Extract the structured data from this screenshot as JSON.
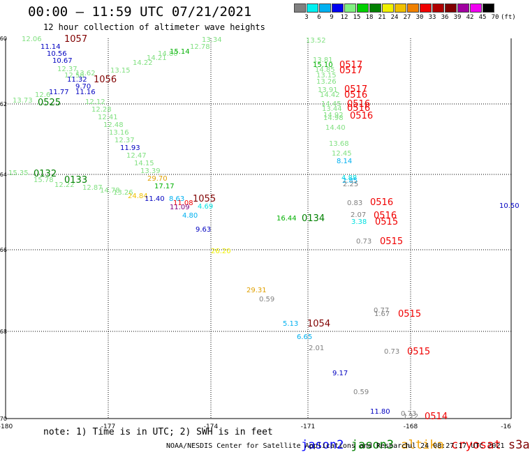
{
  "header": {
    "title": "00:00 — 11:59 UTC 07/21/2021",
    "subtitle": "12 hour collection of altimeter wave heights"
  },
  "colorbar": {
    "unit": "(ft)",
    "ticks": [
      "3",
      "6",
      "9",
      "12",
      "15",
      "18",
      "21",
      "24",
      "27",
      "30",
      "33",
      "36",
      "39",
      "42",
      "45",
      "70"
    ],
    "colors": [
      "#808080",
      "#00f0f0",
      "#00b0f0",
      "#0000f0",
      "#80f080",
      "#00d000",
      "#008000",
      "#f0f000",
      "#f0c000",
      "#f08000",
      "#f00000",
      "#b00000",
      "#800000",
      "#a000a0",
      "#f000f0",
      "#000000"
    ]
  },
  "axes": {
    "y_ticks": [
      "-60",
      "-62",
      "-64",
      "-66",
      "-68",
      "-70"
    ],
    "x_ticks": [
      "-180",
      "-177",
      "-174",
      "-171",
      "-168",
      "-16"
    ]
  },
  "observations": [
    {
      "t": "12.06",
      "c": "#80e080",
      "x": 31,
      "y": 59
    },
    {
      "t": "1057",
      "c": "#800000",
      "x": 92,
      "y": 60,
      "big": true
    },
    {
      "t": "11.14",
      "c": "#0000c0",
      "x": 58,
      "y": 70
    },
    {
      "t": "10.56",
      "c": "#0000c0",
      "x": 67,
      "y": 80
    },
    {
      "t": "10.67",
      "c": "#0000c0",
      "x": 75,
      "y": 90
    },
    {
      "t": "12.37",
      "c": "#80e080",
      "x": 82,
      "y": 102
    },
    {
      "t": "12.58",
      "c": "#80e080",
      "x": 92,
      "y": 111
    },
    {
      "t": "11.32",
      "c": "#0000c0",
      "x": 96,
      "y": 117
    },
    {
      "t": "1056",
      "c": "#800000",
      "x": 134,
      "y": 118,
      "big": true
    },
    {
      "t": "9.70",
      "c": "#0000c0",
      "x": 108,
      "y": 127
    },
    {
      "t": "11.77",
      "c": "#0000c0",
      "x": 70,
      "y": 135
    },
    {
      "t": "11.16",
      "c": "#0000c0",
      "x": 108,
      "y": 135
    },
    {
      "t": "12.6",
      "c": "#80e080",
      "x": 50,
      "y": 139
    },
    {
      "t": "13.73",
      "c": "#80e080",
      "x": 18,
      "y": 147
    },
    {
      "t": "0525",
      "c": "#008000",
      "x": 54,
      "y": 151,
      "big": true
    },
    {
      "t": "12.12",
      "c": "#80e080",
      "x": 122,
      "y": 149
    },
    {
      "t": "12.28",
      "c": "#80e080",
      "x": 131,
      "y": 160
    },
    {
      "t": "12.41",
      "c": "#80e080",
      "x": 140,
      "y": 171
    },
    {
      "t": "12.48",
      "c": "#80e080",
      "x": 148,
      "y": 182
    },
    {
      "t": "13.16",
      "c": "#80e080",
      "x": 156,
      "y": 193
    },
    {
      "t": "12.37",
      "c": "#80e080",
      "x": 164,
      "y": 204
    },
    {
      "t": "11.93",
      "c": "#0000c0",
      "x": 172,
      "y": 215
    },
    {
      "t": "12.47",
      "c": "#80e080",
      "x": 181,
      "y": 226
    },
    {
      "t": "14.15",
      "c": "#80e080",
      "x": 192,
      "y": 237
    },
    {
      "t": "13.39",
      "c": "#80e080",
      "x": 201,
      "y": 248
    },
    {
      "t": "15.35",
      "c": "#80e080",
      "x": 12,
      "y": 251
    },
    {
      "t": "0132",
      "c": "#008000",
      "x": 48,
      "y": 253,
      "big": true
    },
    {
      "t": "15.78",
      "c": "#80e080",
      "x": 48,
      "y": 261
    },
    {
      "t": "12.22",
      "c": "#80e080",
      "x": 78,
      "y": 268
    },
    {
      "t": "0133",
      "c": "#008000",
      "x": 92,
      "y": 262,
      "big": true
    },
    {
      "t": "12.87",
      "c": "#80e080",
      "x": 118,
      "y": 272
    },
    {
      "t": "14.78",
      "c": "#80e080",
      "x": 143,
      "y": 276
    },
    {
      "t": "13.26",
      "c": "#80e080",
      "x": 162,
      "y": 279
    },
    {
      "t": "29.70",
      "c": "#e0a000",
      "x": 211,
      "y": 259
    },
    {
      "t": "17.17",
      "c": "#00b000",
      "x": 221,
      "y": 270
    },
    {
      "t": "24.84",
      "c": "#f0c000",
      "x": 183,
      "y": 284
    },
    {
      "t": "11.40",
      "c": "#0000c0",
      "x": 207,
      "y": 288
    },
    {
      "t": "8.63",
      "c": "#00b0f0",
      "x": 242,
      "y": 288
    },
    {
      "t": "1055",
      "c": "#800000",
      "x": 276,
      "y": 289,
      "big": true
    },
    {
      "t": "11.08",
      "c": "#f00000",
      "x": 248,
      "y": 294
    },
    {
      "t": "11.09",
      "c": "#800080",
      "x": 243,
      "y": 300
    },
    {
      "t": "4.69",
      "c": "#00e0e0",
      "x": 283,
      "y": 299
    },
    {
      "t": "4.80",
      "c": "#00b0f0",
      "x": 261,
      "y": 312
    },
    {
      "t": "9.63",
      "c": "#0000c0",
      "x": 280,
      "y": 332
    },
    {
      "t": "13.62",
      "c": "#80e080",
      "x": 108,
      "y": 108
    },
    {
      "t": "13.15",
      "c": "#80e080",
      "x": 158,
      "y": 104
    },
    {
      "t": "14.22",
      "c": "#80e080",
      "x": 190,
      "y": 93
    },
    {
      "t": "14.21",
      "c": "#80e080",
      "x": 210,
      "y": 86
    },
    {
      "t": "14.80",
      "c": "#80e080",
      "x": 226,
      "y": 80
    },
    {
      "t": "15.14",
      "c": "#00b000",
      "x": 243,
      "y": 77
    },
    {
      "t": "12.78",
      "c": "#80e080",
      "x": 272,
      "y": 70
    },
    {
      "t": "13.34",
      "c": "#80e080",
      "x": 289,
      "y": 60
    },
    {
      "t": "26.20",
      "c": "#f0f000",
      "x": 302,
      "y": 363
    },
    {
      "t": "29.31",
      "c": "#e0a000",
      "x": 353,
      "y": 419
    },
    {
      "t": "0.59",
      "c": "#808080",
      "x": 371,
      "y": 432
    },
    {
      "t": "5.13",
      "c": "#00b0f0",
      "x": 405,
      "y": 467
    },
    {
      "t": "1054",
      "c": "#800000",
      "x": 440,
      "y": 468,
      "big": true
    },
    {
      "t": "6.65",
      "c": "#00b0f0",
      "x": 425,
      "y": 486
    },
    {
      "t": "2.01",
      "c": "#808080",
      "x": 442,
      "y": 502
    },
    {
      "t": "16.44",
      "c": "#00b000",
      "x": 396,
      "y": 316
    },
    {
      "t": "0134",
      "c": "#008000",
      "x": 432,
      "y": 317,
      "big": true
    },
    {
      "t": "13.52",
      "c": "#80e080",
      "x": 438,
      "y": 61
    },
    {
      "t": "13.81",
      "c": "#80e080",
      "x": 448,
      "y": 89
    },
    {
      "t": "15.10",
      "c": "#00b000",
      "x": 448,
      "y": 96
    },
    {
      "t": "14.85",
      "c": "#80e080",
      "x": 451,
      "y": 103
    },
    {
      "t": "13.15",
      "c": "#80e080",
      "x": 453,
      "y": 111
    },
    {
      "t": "13.26",
      "c": "#80e080",
      "x": 453,
      "y": 120
    },
    {
      "t": "0517",
      "c": "#f00000",
      "x": 486,
      "y": 97,
      "big": true
    },
    {
      "t": "0517",
      "c": "#f00000",
      "x": 486,
      "y": 105,
      "big": true
    },
    {
      "t": "13.91",
      "c": "#80e080",
      "x": 455,
      "y": 132
    },
    {
      "t": "14.42",
      "c": "#80e080",
      "x": 458,
      "y": 139
    },
    {
      "t": "0517",
      "c": "#f00000",
      "x": 493,
      "y": 132,
      "big": true
    },
    {
      "t": "0516",
      "c": "#f00000",
      "x": 493,
      "y": 140,
      "big": true
    },
    {
      "t": "14.45",
      "c": "#80e080",
      "x": 460,
      "y": 152
    },
    {
      "t": "13.44",
      "c": "#80e080",
      "x": 461,
      "y": 159
    },
    {
      "t": "0516",
      "c": "#f00000",
      "x": 497,
      "y": 153,
      "big": true
    },
    {
      "t": "0516",
      "c": "#f00000",
      "x": 497,
      "y": 159,
      "big": true
    },
    {
      "t": "14.92",
      "c": "#80e080",
      "x": 463,
      "y": 168
    },
    {
      "t": "14.98",
      "c": "#80e080",
      "x": 463,
      "y": 172
    },
    {
      "t": "0516",
      "c": "#f00000",
      "x": 501,
      "y": 170,
      "big": true
    },
    {
      "t": "14.40",
      "c": "#80e080",
      "x": 466,
      "y": 186
    },
    {
      "t": "13.68",
      "c": "#80e080",
      "x": 471,
      "y": 209
    },
    {
      "t": "12.45",
      "c": "#80e080",
      "x": 475,
      "y": 223
    },
    {
      "t": "8.14",
      "c": "#00b0f0",
      "x": 482,
      "y": 234
    },
    {
      "t": "4.88",
      "c": "#00e0e0",
      "x": 489,
      "y": 258
    },
    {
      "t": "2.85",
      "c": "#00b0f0",
      "x": 490,
      "y": 262
    },
    {
      "t": "2.25",
      "c": "#808080",
      "x": 491,
      "y": 267
    },
    {
      "t": "0.83",
      "c": "#808080",
      "x": 497,
      "y": 294
    },
    {
      "t": "0516",
      "c": "#f00000",
      "x": 530,
      "y": 294,
      "big": true
    },
    {
      "t": "2.07",
      "c": "#808080",
      "x": 502,
      "y": 311
    },
    {
      "t": "0516",
      "c": "#f00000",
      "x": 535,
      "y": 313,
      "big": true
    },
    {
      "t": "3.38",
      "c": "#00e0e0",
      "x": 503,
      "y": 321
    },
    {
      "t": "0515",
      "c": "#f00000",
      "x": 537,
      "y": 322,
      "big": true
    },
    {
      "t": "0.73",
      "c": "#808080",
      "x": 510,
      "y": 349
    },
    {
      "t": "0515",
      "c": "#f00000",
      "x": 544,
      "y": 350,
      "big": true
    },
    {
      "t": "0.77",
      "c": "#808080",
      "x": 535,
      "y": 448
    },
    {
      "t": "1.67",
      "c": "#808080",
      "x": 536,
      "y": 453
    },
    {
      "t": "0515",
      "c": "#f00000",
      "x": 570,
      "y": 454,
      "big": true
    },
    {
      "t": "0.73",
      "c": "#808080",
      "x": 550,
      "y": 507
    },
    {
      "t": "0515",
      "c": "#f00000",
      "x": 583,
      "y": 508,
      "big": true
    },
    {
      "t": "9.17",
      "c": "#0000c0",
      "x": 476,
      "y": 538
    },
    {
      "t": "0.59",
      "c": "#808080",
      "x": 506,
      "y": 565
    },
    {
      "t": "11.80",
      "c": "#0000c0",
      "x": 530,
      "y": 593
    },
    {
      "t": "0.73",
      "c": "#808080",
      "x": 574,
      "y": 596
    },
    {
      "t": "1.12",
      "c": "#808080",
      "x": 577,
      "y": 600
    },
    {
      "t": "0514",
      "c": "#f00000",
      "x": 608,
      "y": 601,
      "big": true
    },
    {
      "t": "10.50",
      "c": "#0000c0",
      "x": 715,
      "y": 298
    }
  ],
  "footer": {
    "note": "note: 1) Time is in UTC; 2) SWH is in feet",
    "legend": [
      {
        "name": "jason2",
        "color": "#0000ff"
      },
      {
        "name": "jason3",
        "color": "#008000"
      },
      {
        "name": "altika",
        "color": "#f0a000"
      },
      {
        "name": "cryosat",
        "color": "#f00000"
      },
      {
        "name": "s3a",
        "color": "#800000"
      }
    ],
    "credit": "NOAA/NESDIS Center for Satellite Applications and Research",
    "timestamp": "Jul 24 08:27:17 UTC 2021"
  }
}
